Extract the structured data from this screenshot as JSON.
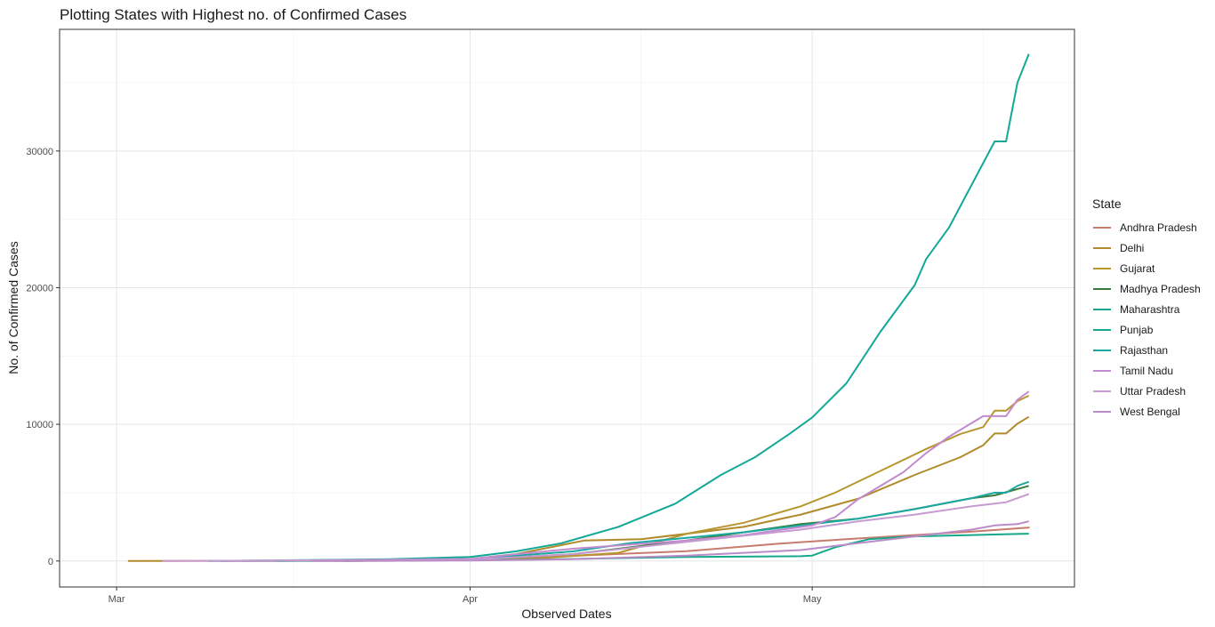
{
  "chart_data": {
    "type": "line",
    "title": "Plotting States with Highest no. of Confirmed Cases",
    "xlabel": "Observed Dates",
    "ylabel": "No. of Confirmed Cases",
    "x_ticks": [
      {
        "date": "2020-03-01",
        "label": "Mar"
      },
      {
        "date": "2020-04-01",
        "label": "Apr"
      },
      {
        "date": "2020-05-01",
        "label": "May"
      }
    ],
    "xlim": [
      "2020-02-25",
      "2020-05-24"
    ],
    "y_ticks": [
      0,
      10000,
      20000,
      30000
    ],
    "ylim": [
      -1900,
      38900
    ],
    "grid": true,
    "legend": {
      "title": "State",
      "position": "right"
    },
    "series": [
      {
        "name": "Andhra Pradesh",
        "color": "#C77C6E",
        "points": [
          [
            "2020-03-12",
            0
          ],
          [
            "2020-03-25",
            10
          ],
          [
            "2020-04-01",
            80
          ],
          [
            "2020-04-10",
            380
          ],
          [
            "2020-04-20",
            720
          ],
          [
            "2020-04-28",
            1260
          ],
          [
            "2020-05-04",
            1600
          ],
          [
            "2020-05-10",
            1900
          ],
          [
            "2020-05-15",
            2150
          ],
          [
            "2020-05-20",
            2450
          ],
          [
            "2020-05-20",
            2500
          ]
        ]
      },
      {
        "name": "Delhi",
        "color": "#B08A2B",
        "points": [
          [
            "2020-03-02",
            0
          ],
          [
            "2020-03-25",
            30
          ],
          [
            "2020-04-01",
            150
          ],
          [
            "2020-04-05",
            500
          ],
          [
            "2020-04-11",
            1500
          ],
          [
            "2020-04-16",
            1600
          ],
          [
            "2020-04-20",
            2000
          ],
          [
            "2020-04-25",
            2500
          ],
          [
            "2020-04-30",
            3400
          ],
          [
            "2020-05-05",
            4550
          ],
          [
            "2020-05-10",
            6300
          ],
          [
            "2020-05-14",
            7600
          ],
          [
            "2020-05-16",
            8470
          ],
          [
            "2020-05-17",
            9330
          ],
          [
            "2020-05-18",
            9330
          ],
          [
            "2020-05-19",
            10050
          ],
          [
            "2020-05-20",
            10550
          ]
        ]
      },
      {
        "name": "Gujarat",
        "color": "#B8962E",
        "points": [
          [
            "2020-03-20",
            0
          ],
          [
            "2020-04-01",
            80
          ],
          [
            "2020-04-07",
            200
          ],
          [
            "2020-04-14",
            600
          ],
          [
            "2020-04-20",
            2000
          ],
          [
            "2020-04-25",
            2800
          ],
          [
            "2020-04-30",
            4000
          ],
          [
            "2020-05-03",
            5000
          ],
          [
            "2020-05-07",
            6600
          ],
          [
            "2020-05-11",
            8200
          ],
          [
            "2020-05-14",
            9300
          ],
          [
            "2020-05-16",
            9800
          ],
          [
            "2020-05-17",
            11000
          ],
          [
            "2020-05-18",
            11000
          ],
          [
            "2020-05-19",
            11700
          ],
          [
            "2020-05-20",
            12100
          ]
        ]
      },
      {
        "name": "Madhya Pradesh",
        "color": "#3C7A3C",
        "points": [
          [
            "2020-03-21",
            0
          ],
          [
            "2020-04-01",
            90
          ],
          [
            "2020-04-10",
            500
          ],
          [
            "2020-04-20",
            1500
          ],
          [
            "2020-04-30",
            2700
          ],
          [
            "2020-05-05",
            3100
          ],
          [
            "2020-05-10",
            3800
          ],
          [
            "2020-05-15",
            4600
          ],
          [
            "2020-05-17",
            4800
          ],
          [
            "2020-05-20",
            5500
          ]
        ]
      },
      {
        "name": "Maharashtra",
        "color": "#12A897",
        "points": [
          [
            "2020-03-09",
            0
          ],
          [
            "2020-03-25",
            130
          ],
          [
            "2020-04-01",
            300
          ],
          [
            "2020-04-05",
            700
          ],
          [
            "2020-04-09",
            1300
          ],
          [
            "2020-04-14",
            2500
          ],
          [
            "2020-04-19",
            4200
          ],
          [
            "2020-04-23",
            6300
          ],
          [
            "2020-04-26",
            7600
          ],
          [
            "2020-04-29",
            9300
          ],
          [
            "2020-05-01",
            10500
          ],
          [
            "2020-05-04",
            13000
          ],
          [
            "2020-05-07",
            16800
          ],
          [
            "2020-05-10",
            20200
          ],
          [
            "2020-05-11",
            22100
          ],
          [
            "2020-05-13",
            24400
          ],
          [
            "2020-05-17",
            30700
          ],
          [
            "2020-05-18",
            30700
          ],
          [
            "2020-05-19",
            35000
          ],
          [
            "2020-05-20",
            37100
          ]
        ]
      },
      {
        "name": "Punjab",
        "color": "#16A88A",
        "points": [
          [
            "2020-03-10",
            0
          ],
          [
            "2020-04-01",
            50
          ],
          [
            "2020-04-10",
            150
          ],
          [
            "2020-04-20",
            300
          ],
          [
            "2020-04-30",
            350
          ],
          [
            "2020-05-01",
            400
          ],
          [
            "2020-05-03",
            1000
          ],
          [
            "2020-05-06",
            1600
          ],
          [
            "2020-05-10",
            1800
          ],
          [
            "2020-05-15",
            1900
          ],
          [
            "2020-05-20",
            2000
          ]
        ]
      },
      {
        "name": "Rajasthan",
        "color": "#1AA8A0",
        "points": [
          [
            "2020-03-15",
            0
          ],
          [
            "2020-04-01",
            130
          ],
          [
            "2020-04-05",
            400
          ],
          [
            "2020-04-10",
            700
          ],
          [
            "2020-04-15",
            1300
          ],
          [
            "2020-04-20",
            1700
          ],
          [
            "2020-04-25",
            2100
          ],
          [
            "2020-04-30",
            2600
          ],
          [
            "2020-05-05",
            3100
          ],
          [
            "2020-05-10",
            3800
          ],
          [
            "2020-05-15",
            4600
          ],
          [
            "2020-05-17",
            5000
          ],
          [
            "2020-05-18",
            5000
          ],
          [
            "2020-05-19",
            5500
          ],
          [
            "2020-05-20",
            5800
          ]
        ]
      },
      {
        "name": "Tamil Nadu",
        "color": "#C28BCF",
        "points": [
          [
            "2020-03-10",
            0
          ],
          [
            "2020-04-01",
            150
          ],
          [
            "2020-04-05",
            500
          ],
          [
            "2020-04-10",
            900
          ],
          [
            "2020-04-15",
            1200
          ],
          [
            "2020-04-20",
            1500
          ],
          [
            "2020-04-25",
            1900
          ],
          [
            "2020-05-01",
            2600
          ],
          [
            "2020-05-03",
            3200
          ],
          [
            "2020-05-05",
            4500
          ],
          [
            "2020-05-09",
            6500
          ],
          [
            "2020-05-11",
            7900
          ],
          [
            "2020-05-13",
            9100
          ],
          [
            "2020-05-16",
            10600
          ],
          [
            "2020-05-18",
            10600
          ],
          [
            "2020-05-19",
            11800
          ],
          [
            "2020-05-20",
            12400
          ]
        ]
      },
      {
        "name": "Uttar Pradesh",
        "color": "#C89AD2",
        "points": [
          [
            "2020-03-05",
            0
          ],
          [
            "2020-04-01",
            100
          ],
          [
            "2020-04-10",
            500
          ],
          [
            "2020-04-20",
            1400
          ],
          [
            "2020-04-30",
            2300
          ],
          [
            "2020-05-05",
            2900
          ],
          [
            "2020-05-10",
            3400
          ],
          [
            "2020-05-15",
            4000
          ],
          [
            "2020-05-17",
            4200
          ],
          [
            "2020-05-18",
            4300
          ],
          [
            "2020-05-20",
            4900
          ]
        ]
      },
      {
        "name": "West Bengal",
        "color": "#B98CC8",
        "points": [
          [
            "2020-03-18",
            0
          ],
          [
            "2020-04-01",
            40
          ],
          [
            "2020-04-10",
            130
          ],
          [
            "2020-04-20",
            400
          ],
          [
            "2020-04-30",
            800
          ],
          [
            "2020-05-05",
            1300
          ],
          [
            "2020-05-10",
            1800
          ],
          [
            "2020-05-13",
            2100
          ],
          [
            "2020-05-15",
            2300
          ],
          [
            "2020-05-17",
            2600
          ],
          [
            "2020-05-19",
            2700
          ],
          [
            "2020-05-20",
            2900
          ]
        ]
      }
    ]
  }
}
